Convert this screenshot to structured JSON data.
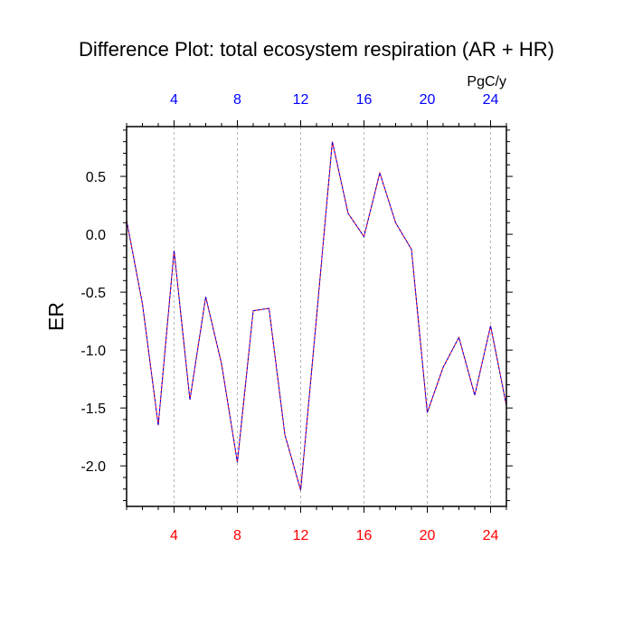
{
  "chart_data": {
    "type": "line",
    "title": "Difference Plot: total ecosystem respiration (AR + HR)",
    "ylabel": "ER",
    "units": "PgC/y",
    "xlim": [
      1,
      25
    ],
    "ylim": [
      -2.35,
      0.93
    ],
    "x_ticks": [
      4,
      8,
      12,
      16,
      20,
      24
    ],
    "y_ticks": [
      0.5,
      0.0,
      -0.5,
      -1.0,
      -1.5,
      -2.0
    ],
    "y_tick_labels": [
      "0.5",
      "0.0",
      "-0.5",
      "-1.0",
      "-1.5",
      "-2.0"
    ],
    "grid_x": true,
    "grid_y": false,
    "colors": {
      "bottom_ticks": "#ff0000",
      "top_ticks": "#0000ff",
      "series_a": "#ff0000",
      "series_b": "#0000ff"
    },
    "x": [
      1,
      2,
      3,
      4,
      5,
      6,
      7,
      8,
      9,
      10,
      11,
      12,
      13,
      14,
      15,
      16,
      17,
      18,
      19,
      20,
      21,
      22,
      23,
      24,
      25
    ],
    "series": [
      {
        "color": "#ff0000",
        "values": [
          0.12,
          -0.6,
          -1.65,
          -0.14,
          -1.43,
          -0.54,
          -1.12,
          -1.97,
          -0.66,
          -0.64,
          -1.73,
          -2.21,
          -0.72,
          0.8,
          0.18,
          -0.02,
          0.53,
          0.1,
          -0.13,
          -1.54,
          -1.15,
          -0.89,
          -1.39,
          -0.79,
          -1.48
        ]
      },
      {
        "color": "#0000ff",
        "values": [
          0.12,
          -0.6,
          -1.65,
          -0.14,
          -1.43,
          -0.54,
          -1.12,
          -1.97,
          -0.66,
          -0.64,
          -1.73,
          -2.21,
          -0.72,
          0.8,
          0.18,
          -0.02,
          0.53,
          0.1,
          -0.13,
          -1.54,
          -1.15,
          -0.89,
          -1.39,
          -0.79,
          -1.48
        ]
      }
    ]
  }
}
